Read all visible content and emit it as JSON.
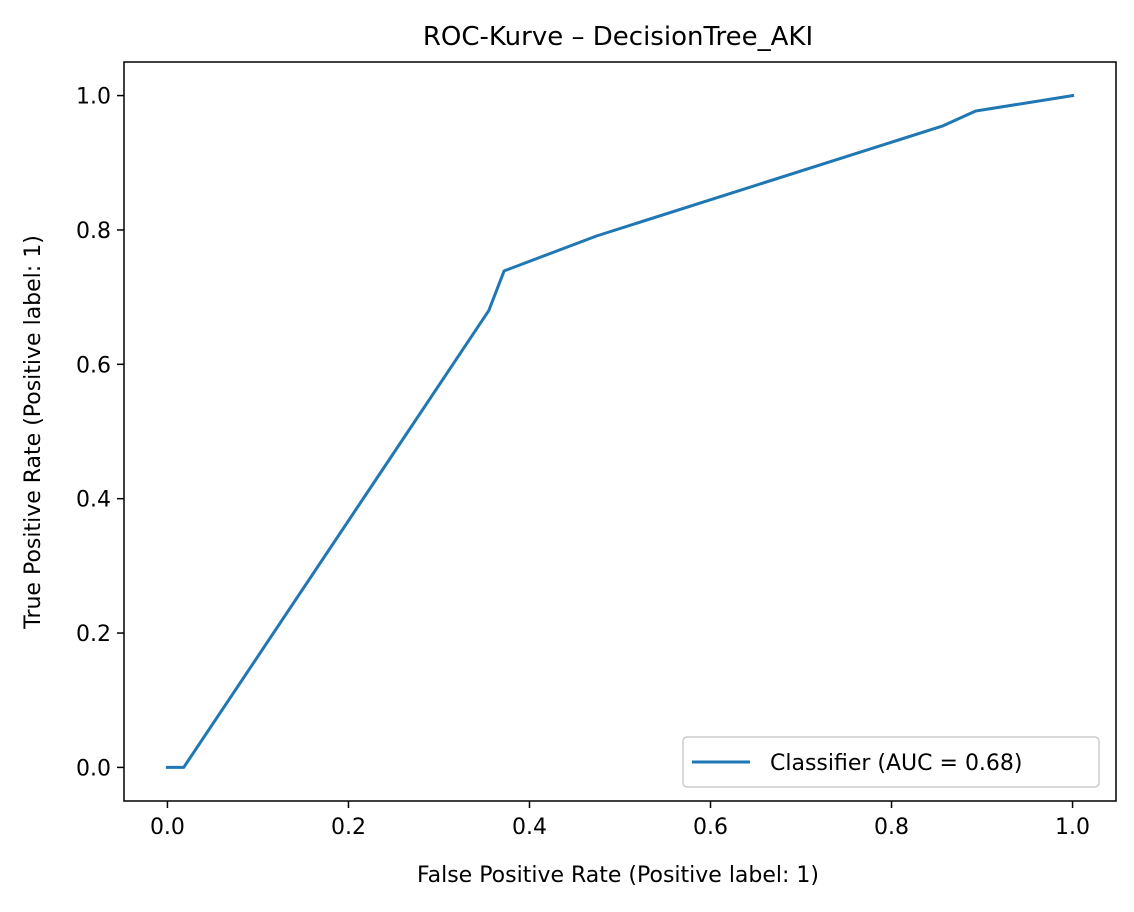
{
  "chart_data": {
    "type": "line",
    "title": "ROC-Kurve – DecisionTree_AKI",
    "xlabel": "False Positive Rate (Positive label: 1)",
    "ylabel": "True Positive Rate (Positive label: 1)",
    "xlim": [
      -0.048,
      1.048
    ],
    "ylim": [
      -0.05,
      1.05
    ],
    "xticks": [
      0.0,
      0.2,
      0.4,
      0.6,
      0.8,
      1.0
    ],
    "xtick_labels": [
      "0.0",
      "0.2",
      "0.4",
      "0.6",
      "0.8",
      "1.0"
    ],
    "yticks": [
      0.0,
      0.2,
      0.4,
      0.6,
      0.8,
      1.0
    ],
    "ytick_labels": [
      "0.0",
      "0.2",
      "0.4",
      "0.6",
      "0.8",
      "1.0"
    ],
    "grid": false,
    "legend_position": "lower-right",
    "series": [
      {
        "name": "Classifier (AUC = 0.68)",
        "color": "#1f77b4",
        "x": [
          0.0,
          0.018,
          0.355,
          0.372,
          0.474,
          0.857,
          0.893,
          1.0
        ],
        "y": [
          0.0,
          0.0,
          0.68,
          0.739,
          0.791,
          0.955,
          0.977,
          1.0
        ]
      }
    ]
  }
}
